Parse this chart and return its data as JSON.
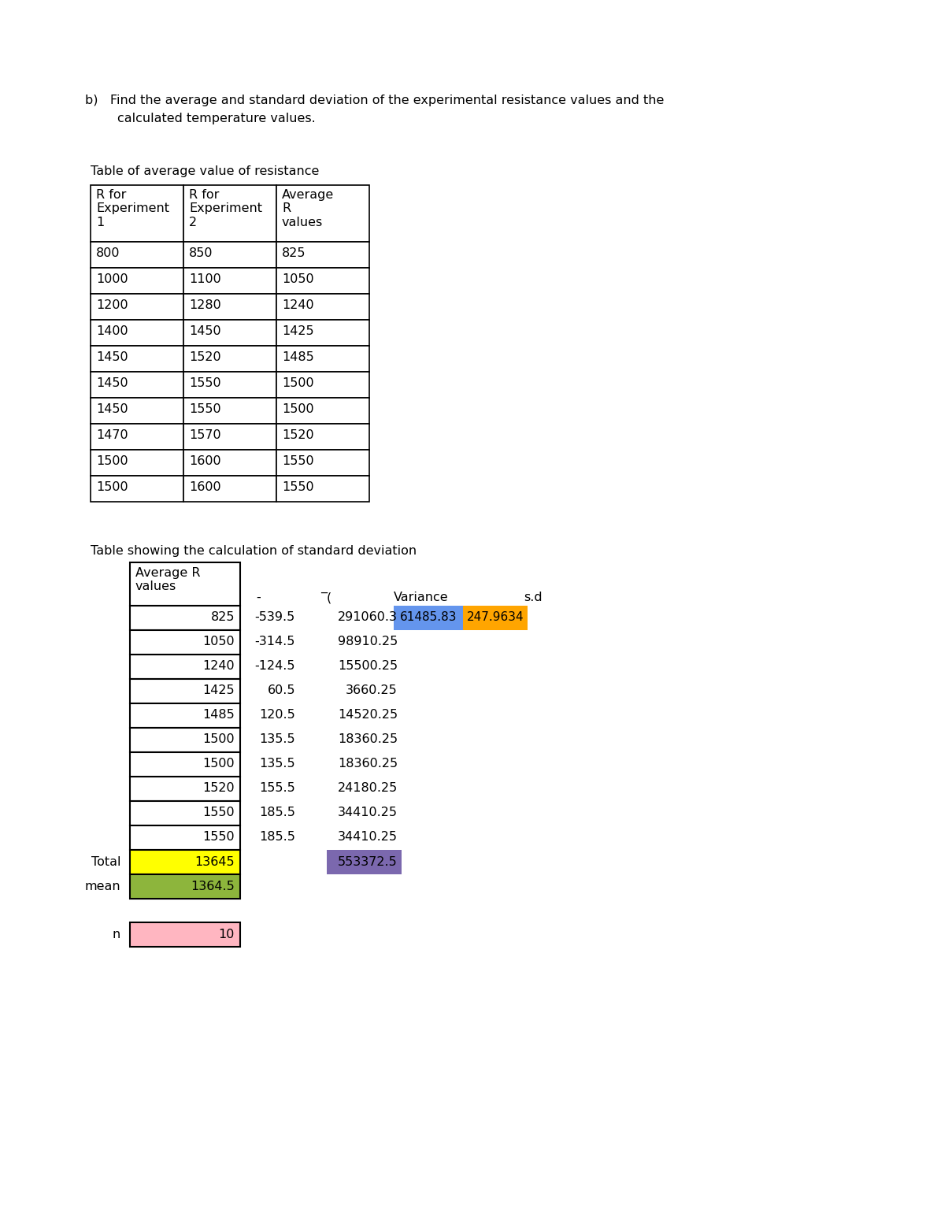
{
  "intro_line1": "b)   Find the average and standard deviation of the experimental resistance values and the",
  "intro_line2": "        calculated temperature values.",
  "table1_title": "Table of average value of resistance",
  "table1_headers": [
    "R for\nExperiment\n1",
    "R for\nExperiment\n2",
    "Average\nR\nvalues"
  ],
  "table1_data": [
    [
      800,
      850,
      825
    ],
    [
      1000,
      1100,
      1050
    ],
    [
      1200,
      1280,
      1240
    ],
    [
      1400,
      1450,
      1425
    ],
    [
      1450,
      1520,
      1485
    ],
    [
      1450,
      1550,
      1500
    ],
    [
      1450,
      1550,
      1500
    ],
    [
      1470,
      1570,
      1520
    ],
    [
      1500,
      1600,
      1550
    ],
    [
      1500,
      1600,
      1550
    ]
  ],
  "table2_title": "Table showing the calculation of standard deviation",
  "table2_col1_header": "Average R\nvalues",
  "table2_col2_header": "-",
  "table2_col3_header": "̅(",
  "table2_data": [
    [
      825,
      "-539.5",
      "291060.3"
    ],
    [
      1050,
      "-314.5",
      "98910.25"
    ],
    [
      1240,
      "-124.5",
      "15500.25"
    ],
    [
      1425,
      "60.5",
      "3660.25"
    ],
    [
      1485,
      "120.5",
      "14520.25"
    ],
    [
      1500,
      "135.5",
      "18360.25"
    ],
    [
      1500,
      "135.5",
      "18360.25"
    ],
    [
      1520,
      "155.5",
      "24180.25"
    ],
    [
      1550,
      "185.5",
      "34410.25"
    ],
    [
      1550,
      "185.5",
      "34410.25"
    ]
  ],
  "total_avg_r": "13645",
  "total_sq": "553372.5",
  "mean_avg_r": "1364.5",
  "n_val": "10",
  "variance": "61485.83",
  "sd": "247.9634",
  "color_yellow": "#FFFF00",
  "color_green": "#8DB53C",
  "color_purple": "#7B68AE",
  "color_blue": "#6495ED",
  "color_orange": "#FFA500",
  "color_pink": "#FFB6C1",
  "bg_color": "#FFFFFF",
  "font_size": 11.5,
  "font_family": "DejaVu Sans"
}
